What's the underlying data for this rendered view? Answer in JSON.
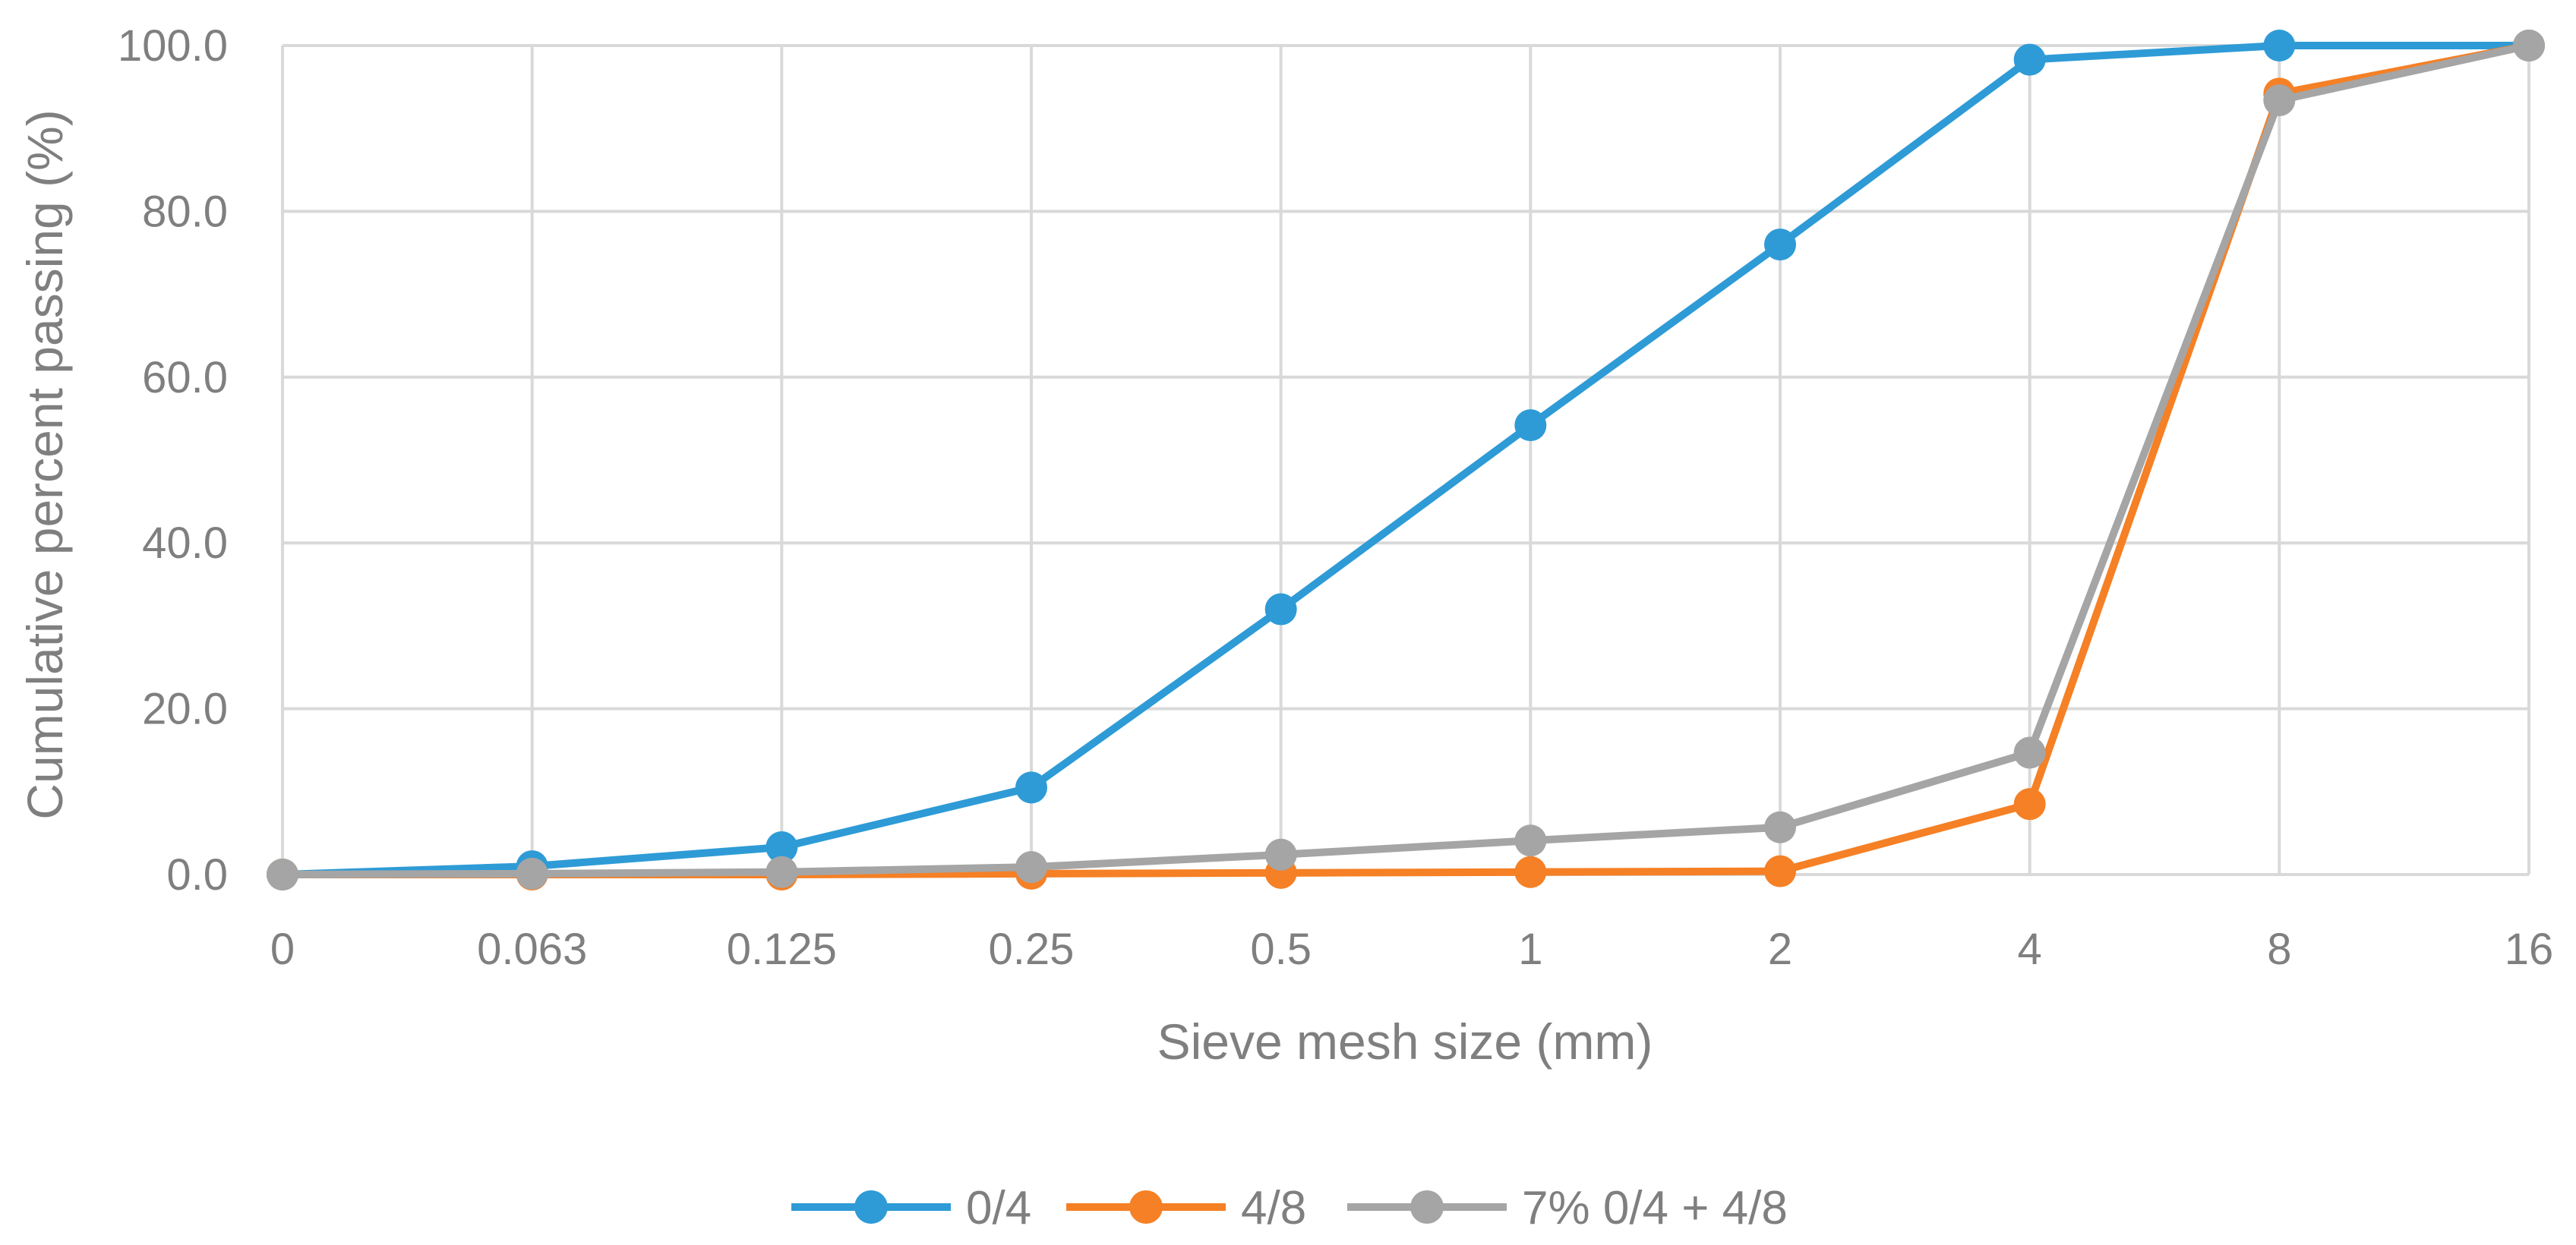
{
  "chart_data": {
    "type": "line",
    "xlabel": "Sieve mesh size (mm)",
    "ylabel": "Cumulative percent passing (%)",
    "categories": [
      "0",
      "0.063",
      "0.125",
      "0.25",
      "0.5",
      "1",
      "2",
      "4",
      "8",
      "16"
    ],
    "ylim": [
      0,
      100
    ],
    "yticks": [
      "0.0",
      "20.0",
      "40.0",
      "60.0",
      "80.0",
      "100.0"
    ],
    "ytick_values": [
      0,
      20,
      40,
      60,
      80,
      100
    ],
    "grid": true,
    "legend_position": "bottom",
    "series": [
      {
        "name": "0/4",
        "color": "#2e9bd6",
        "values": [
          0,
          1.0,
          3.3,
          10.5,
          32.0,
          54.2,
          76.0,
          98.3,
          100,
          100
        ]
      },
      {
        "name": "4/8",
        "color": "#f58025",
        "values": [
          0,
          0,
          0,
          0.1,
          0.2,
          0.3,
          0.4,
          8.5,
          94.2,
          100
        ]
      },
      {
        "name": "7% 0/4 + 4/8",
        "color": "#a5a5a5",
        "values": [
          0,
          0.1,
          0.3,
          0.9,
          2.4,
          4.1,
          5.7,
          14.7,
          93.4,
          100
        ]
      }
    ]
  }
}
